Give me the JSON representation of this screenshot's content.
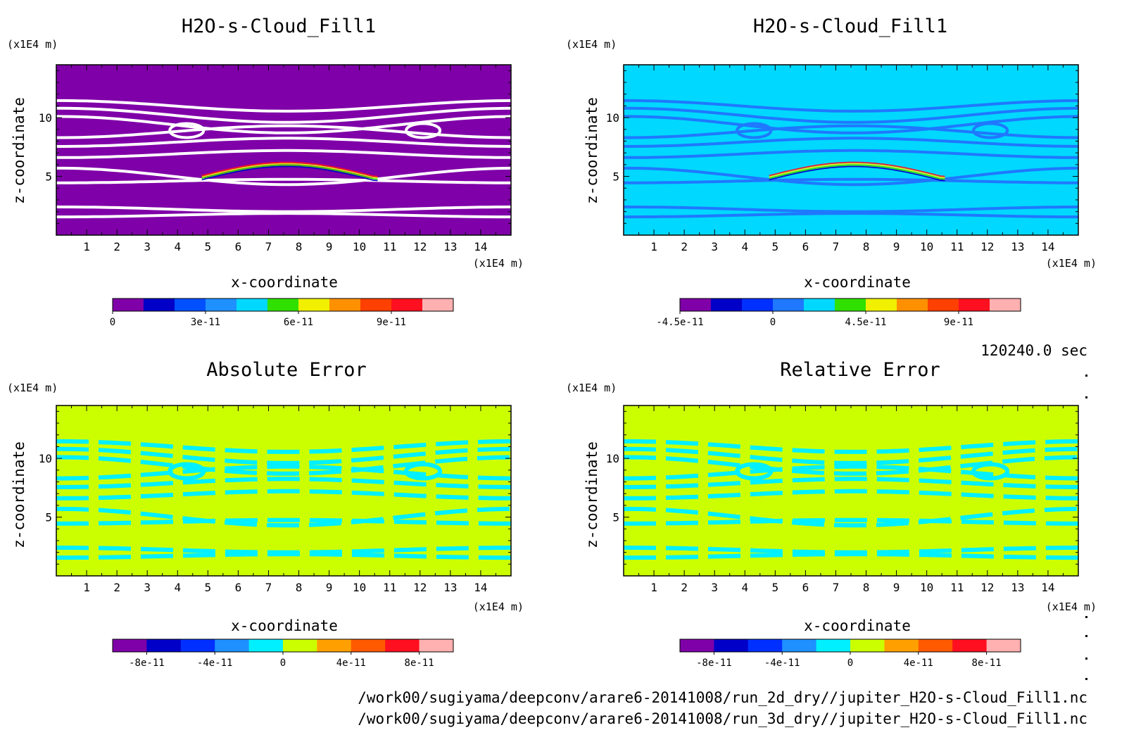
{
  "time_label": "120240.0 sec",
  "file_paths": [
    "/work00/sugiyama/deepconv/arare6-20141008/run_2d_dry//jupiter_H2O-s-Cloud_Fill1.nc",
    "/work00/sugiyama/deepconv/arare6-20141008/run_3d_dry//jupiter_H2O-s-Cloud_Fill1.nc"
  ],
  "colors": {
    "panel1_bg": "#7f00a8",
    "panel1_stripe": "#ffffff",
    "panel2_bg": "#00d8ff",
    "panel2_stripe": "#1f78ff",
    "err_bg": "#cbff00",
    "err_patch": "#00f0ff"
  },
  "chart_data": [
    {
      "type": "heatmap",
      "title": "H2O-s-Cloud_Fill1",
      "xlabel": "x-coordinate",
      "ylabel": "z-coordinate",
      "x_unit": "(x1E4 m)",
      "y_unit": "(x1E4 m)",
      "xlim": [
        0,
        15
      ],
      "ylim": [
        0,
        14.5
      ],
      "xticks": [
        "1",
        "2",
        "3",
        "4",
        "5",
        "6",
        "7",
        "8",
        "9",
        "10",
        "11",
        "12",
        "13",
        "14"
      ],
      "yticks": [
        "5",
        "10"
      ],
      "colorbar": {
        "colors": [
          "#7f00a8",
          "#0000c8",
          "#0050ff",
          "#1f90ff",
          "#00d8ff",
          "#30e000",
          "#f0f000",
          "#ff9000",
          "#ff4000",
          "#ff1020",
          "#ffb0b0"
        ],
        "labels": [
          "0",
          "3e-11",
          "6e-11",
          "9e-11"
        ],
        "label_positions": [
          0,
          3,
          6,
          9
        ]
      }
    },
    {
      "type": "heatmap",
      "title": "H2O-s-Cloud_Fill1",
      "xlabel": "x-coordinate",
      "ylabel": "z-coordinate",
      "x_unit": "(x1E4 m)",
      "y_unit": "(x1E4 m)",
      "xlim": [
        0,
        15
      ],
      "ylim": [
        0,
        14.5
      ],
      "xticks": [
        "1",
        "2",
        "3",
        "4",
        "5",
        "6",
        "7",
        "8",
        "9",
        "10",
        "11",
        "12",
        "13",
        "14"
      ],
      "yticks": [
        "5",
        "10"
      ],
      "colorbar": {
        "colors": [
          "#7f00a8",
          "#0000c8",
          "#0030ff",
          "#1f78ff",
          "#00d8ff",
          "#30e000",
          "#f0f000",
          "#ff9000",
          "#ff4000",
          "#ff1020",
          "#ffb0b0"
        ],
        "labels": [
          "-4.5e-11",
          "0",
          "4.5e-11",
          "9e-11"
        ],
        "label_positions": [
          0,
          3,
          6,
          9
        ]
      }
    },
    {
      "type": "heatmap",
      "title": "Absolute Error",
      "xlabel": "x-coordinate",
      "ylabel": "z-coordinate",
      "x_unit": "(x1E4 m)",
      "y_unit": "(x1E4 m)",
      "xlim": [
        0,
        15
      ],
      "ylim": [
        0,
        14.5
      ],
      "xticks": [
        "1",
        "2",
        "3",
        "4",
        "5",
        "6",
        "7",
        "8",
        "9",
        "10",
        "11",
        "12",
        "13",
        "14"
      ],
      "yticks": [
        "5",
        "10"
      ],
      "colorbar": {
        "colors": [
          "#7f00a8",
          "#0000c8",
          "#0030ff",
          "#1f90ff",
          "#00f0ff",
          "#cbff00",
          "#ffa000",
          "#ff5a00",
          "#ff1020",
          "#ffb0b0"
        ],
        "labels": [
          "-8e-11",
          "-4e-11",
          "0",
          "4e-11",
          "8e-11"
        ],
        "label_positions": [
          1,
          3,
          5,
          7,
          9
        ]
      }
    },
    {
      "type": "heatmap",
      "title": "Relative Error",
      "xlabel": "x-coordinate",
      "ylabel": "z-coordinate",
      "x_unit": "(x1E4 m)",
      "y_unit": "(x1E4 m)",
      "xlim": [
        0,
        15
      ],
      "ylim": [
        0,
        14.5
      ],
      "xticks": [
        "1",
        "2",
        "3",
        "4",
        "5",
        "6",
        "7",
        "8",
        "9",
        "10",
        "11",
        "12",
        "13",
        "14"
      ],
      "yticks": [
        "5",
        "10"
      ],
      "colorbar": {
        "colors": [
          "#7f00a8",
          "#0000c8",
          "#0030ff",
          "#1f90ff",
          "#00f0ff",
          "#cbff00",
          "#ffa000",
          "#ff5a00",
          "#ff1020",
          "#ffb0b0"
        ],
        "labels": [
          "-8e-11",
          "-4e-11",
          "0",
          "4e-11",
          "8e-11"
        ],
        "label_positions": [
          1,
          3,
          5,
          7,
          9
        ]
      }
    }
  ]
}
